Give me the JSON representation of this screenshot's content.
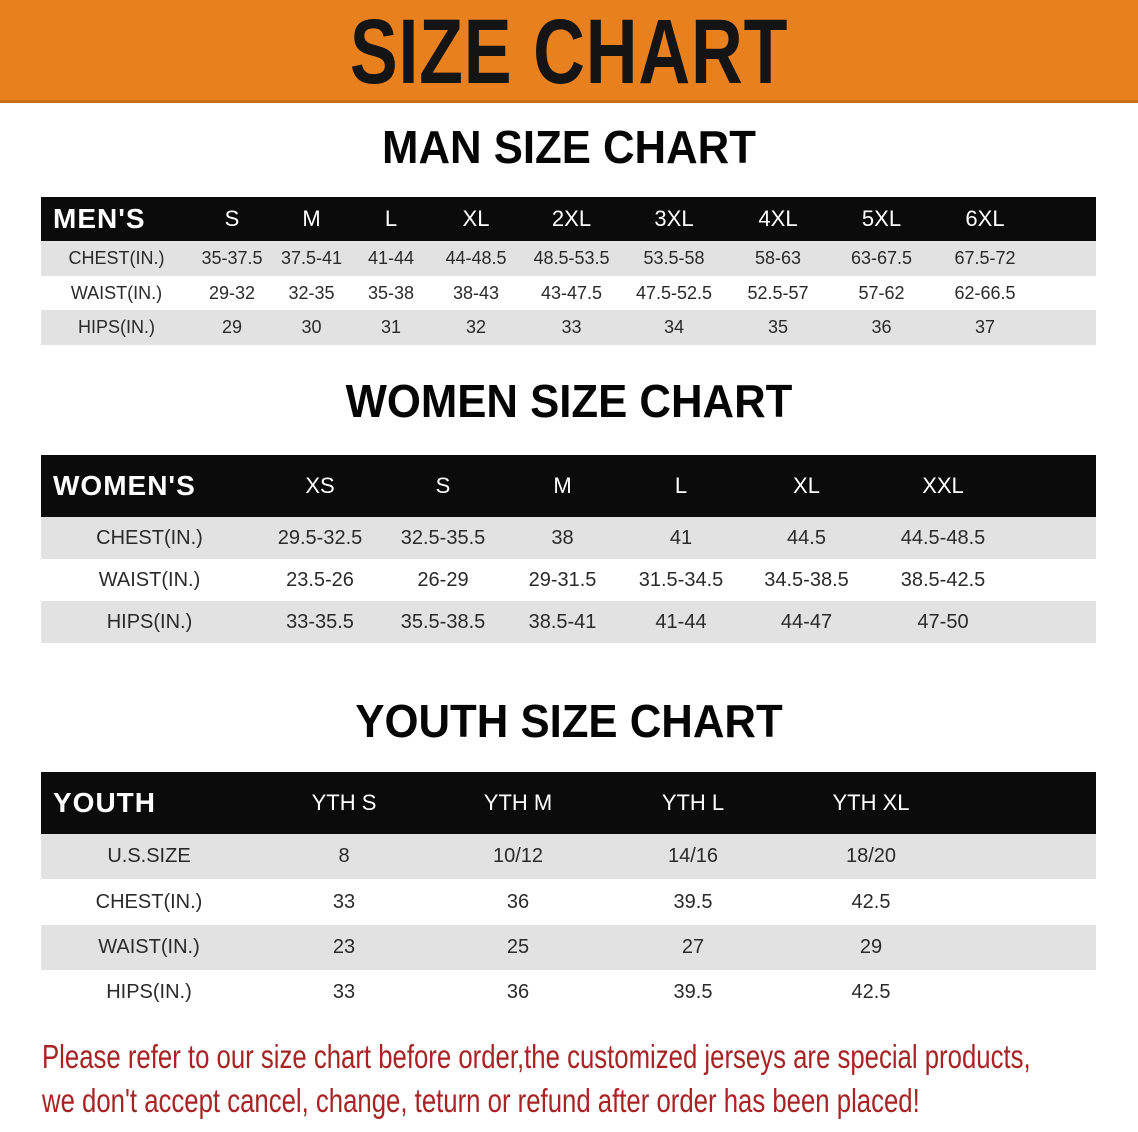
{
  "title": "SIZE CHART",
  "colors": {
    "banner": "#E8801E",
    "header_row": "#0b0b0b",
    "stripe": "#e2e2e2",
    "note_text": "#a82424"
  },
  "men": {
    "title": "MAN SIZE CHART",
    "corner": "MEN'S",
    "sizes": [
      "S",
      "M",
      "L",
      "XL",
      "2XL",
      "3XL",
      "4XL",
      "5XL",
      "6XL"
    ],
    "rows": [
      {
        "label": "CHEST(IN.)",
        "values": [
          "35-37.5",
          "37.5-41",
          "41-44",
          "44-48.5",
          "48.5-53.5",
          "53.5-58",
          "58-63",
          "63-67.5",
          "67.5-72"
        ]
      },
      {
        "label": "WAIST(IN.)",
        "values": [
          "29-32",
          "32-35",
          "35-38",
          "38-43",
          "43-47.5",
          "47.5-52.5",
          "52.5-57",
          "57-62",
          "62-66.5"
        ]
      },
      {
        "label": "HIPS(IN.)",
        "values": [
          "29",
          "30",
          "31",
          "32",
          "33",
          "34",
          "35",
          "36",
          "37"
        ]
      }
    ]
  },
  "women": {
    "title": "WOMEN SIZE CHART",
    "corner": "WOMEN'S",
    "sizes": [
      "XS",
      "S",
      "M",
      "L",
      "XL",
      "XXL"
    ],
    "rows": [
      {
        "label": "CHEST(IN.)",
        "values": [
          "29.5-32.5",
          "32.5-35.5",
          "38",
          "41",
          "44.5",
          "44.5-48.5"
        ]
      },
      {
        "label": "WAIST(IN.)",
        "values": [
          "23.5-26",
          "26-29",
          "29-31.5",
          "31.5-34.5",
          "34.5-38.5",
          "38.5-42.5"
        ]
      },
      {
        "label": "HIPS(IN.)",
        "values": [
          "33-35.5",
          "35.5-38.5",
          "38.5-41",
          "41-44",
          "44-47",
          "47-50"
        ]
      }
    ]
  },
  "youth": {
    "title": "YOUTH SIZE CHART",
    "corner": "YOUTH",
    "sizes": [
      "YTH S",
      "YTH M",
      "YTH L",
      "YTH XL"
    ],
    "rows": [
      {
        "label": "U.S.SIZE",
        "values": [
          "8",
          "10/12",
          "14/16",
          "18/20"
        ]
      },
      {
        "label": "CHEST(IN.)",
        "values": [
          "33",
          "36",
          "39.5",
          "42.5"
        ]
      },
      {
        "label": "WAIST(IN.)",
        "values": [
          "23",
          "25",
          "27",
          "29"
        ]
      },
      {
        "label": "HIPS(IN.)",
        "values": [
          "33",
          "36",
          "39.5",
          "42.5"
        ]
      }
    ]
  },
  "note": {
    "line1": "Please refer to our size chart before order,the customized jerseys are special products,",
    "line2": "we don't accept cancel, change, teturn or refund after order has been placed!"
  }
}
